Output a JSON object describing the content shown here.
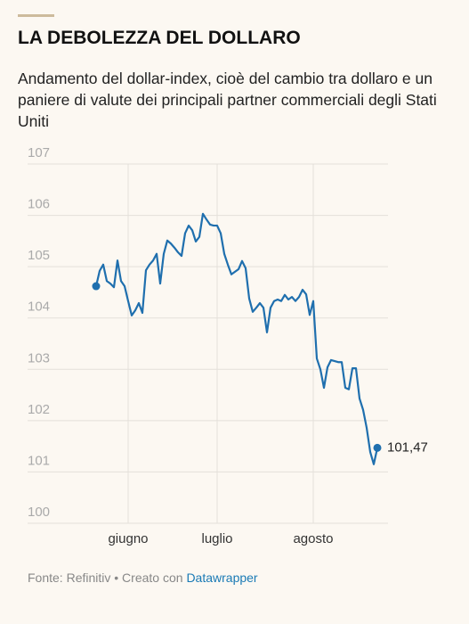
{
  "chart_data": {
    "type": "line",
    "title": "LA DEBOLEZZA DEL DOLLARO",
    "subtitle": "Andamento del dollar-index, cioè del cambio tra dollaro e un paniere di valute dei principali partner commerciali degli Stati Uniti",
    "source": "Fonte: Refinitiv • Creato con",
    "credit": "Datawrapper",
    "categories": [
      null,
      null,
      null,
      null,
      null,
      null,
      null,
      null,
      null,
      "giugno",
      null,
      null,
      null,
      null,
      null,
      null,
      null,
      null,
      null,
      null,
      null,
      null,
      null,
      null,
      null,
      null,
      null,
      null,
      null,
      null,
      null,
      null,
      null,
      null,
      "luglio",
      null,
      null,
      null,
      null,
      null,
      null,
      null,
      null,
      null,
      null,
      null,
      null,
      null,
      null,
      null,
      null,
      null,
      null,
      null,
      null,
      null,
      null,
      null,
      null,
      null,
      null,
      "agosto",
      null,
      null,
      null,
      null,
      null,
      null,
      null,
      null,
      null,
      null,
      null,
      null,
      null,
      null,
      null,
      null,
      null,
      null
    ],
    "series": [
      {
        "name": "dollar-index",
        "color": "#1f6fae",
        "values": [
          104.62,
          104.92,
          105.04,
          104.72,
          104.67,
          104.6,
          105.12,
          104.72,
          104.62,
          104.33,
          104.05,
          104.15,
          104.29,
          104.1,
          104.93,
          105.04,
          105.12,
          105.25,
          104.67,
          105.25,
          105.51,
          105.45,
          105.37,
          105.28,
          105.21,
          105.65,
          105.8,
          105.71,
          105.49,
          105.58,
          106.03,
          105.92,
          105.82,
          105.8,
          105.8,
          105.65,
          105.25,
          105.04,
          104.85,
          104.9,
          104.95,
          105.11,
          104.97,
          104.38,
          104.12,
          104.2,
          104.29,
          104.2,
          103.72,
          104.2,
          104.33,
          104.36,
          104.33,
          104.45,
          104.36,
          104.41,
          104.33,
          104.41,
          104.55,
          104.46,
          104.06,
          104.33,
          103.21,
          103.0,
          102.64,
          103.04,
          103.18,
          103.16,
          103.14,
          103.14,
          102.64,
          102.61,
          103.02,
          103.02,
          102.43,
          102.21,
          101.86,
          101.39,
          101.15,
          101.47
        ],
        "value_labels": [
          null,
          null,
          null,
          null,
          null,
          null,
          null,
          null,
          null,
          null,
          null,
          null,
          null,
          null,
          null,
          null,
          null,
          null,
          null,
          null,
          null,
          null,
          null,
          null,
          null,
          null,
          null,
          null,
          null,
          null,
          null,
          null,
          null,
          null,
          null,
          null,
          null,
          null,
          null,
          null,
          null,
          null,
          null,
          null,
          null,
          null,
          null,
          null,
          null,
          null,
          null,
          null,
          null,
          null,
          null,
          null,
          null,
          null,
          null,
          null,
          null,
          null,
          null,
          null,
          null,
          null,
          null,
          null,
          null,
          null,
          null,
          null,
          null,
          null,
          null,
          null,
          null,
          null,
          null,
          "101,47"
        ]
      }
    ],
    "ylim": [
      100,
      107
    ],
    "yticks": [
      100,
      101,
      102,
      103,
      104,
      105,
      106,
      107
    ],
    "grid": true
  }
}
